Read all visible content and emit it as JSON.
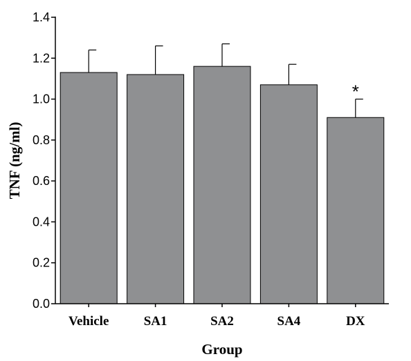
{
  "chart_data": {
    "type": "bar",
    "categories": [
      "Vehicle",
      "SA1",
      "SA2",
      "SA4",
      "DX"
    ],
    "values": [
      1.13,
      1.12,
      1.16,
      1.07,
      0.91
    ],
    "error_upper": [
      1.24,
      1.26,
      1.27,
      1.17,
      1.0
    ],
    "annotations": [
      "",
      "",
      "",
      "",
      "*"
    ],
    "xlabel": "Group",
    "ylabel": "TNF (ng/ml)",
    "ylim": [
      0,
      1.4
    ],
    "yticks": [
      "0.0",
      "0.2",
      "0.4",
      "0.6",
      "0.8",
      "1.0",
      "1.2",
      "1.4"
    ],
    "bar_color": "#8f9092",
    "grid": false,
    "legend": "none"
  }
}
